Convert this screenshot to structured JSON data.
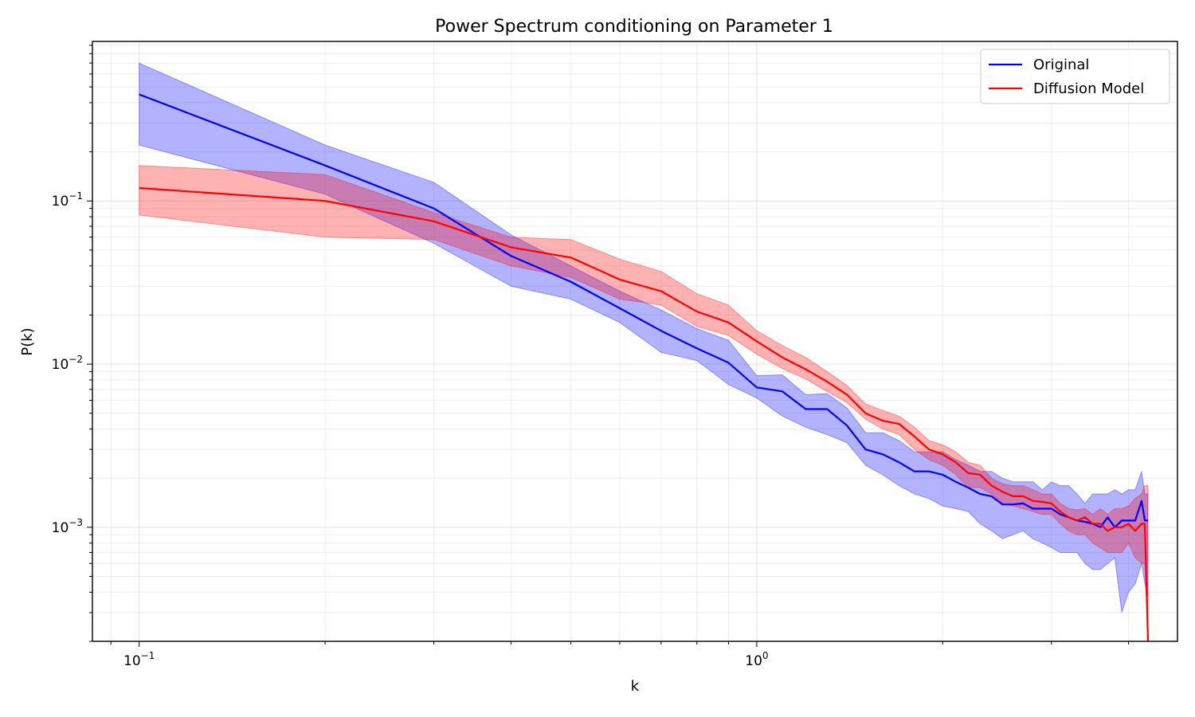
{
  "chart_data": {
    "type": "line",
    "title": "Power Spectrum conditioning on Parameter 1",
    "xlabel": "k",
    "ylabel": "P(k)",
    "xscale": "log",
    "yscale": "log",
    "xlim": [
      0.084,
      4.8
    ],
    "ylim": [
      0.0002,
      0.95
    ],
    "grid": true,
    "legend_position": "top-right",
    "x_ticks": [
      {
        "value": 0.1,
        "base": "10",
        "exp": "−1"
      },
      {
        "value": 1,
        "base": "10",
        "exp": "0"
      }
    ],
    "y_ticks": [
      {
        "value": 0.1,
        "base": "10",
        "exp": "−1"
      },
      {
        "value": 0.01,
        "base": "10",
        "exp": "−2"
      },
      {
        "value": 0.001,
        "base": "10",
        "exp": "−3"
      }
    ],
    "x": [
      0.1,
      0.2,
      0.3,
      0.4,
      0.5,
      0.6,
      0.7,
      0.8,
      0.9,
      1.0,
      1.1,
      1.2,
      1.3,
      1.4,
      1.5,
      1.6,
      1.7,
      1.8,
      1.9,
      2.0,
      2.1,
      2.2,
      2.3,
      2.4,
      2.5,
      2.6,
      2.7,
      2.8,
      2.9,
      3.0,
      3.1,
      3.2,
      3.3,
      3.4,
      3.5,
      3.6,
      3.7,
      3.8,
      3.9,
      4.0,
      4.1,
      4.2,
      4.25,
      4.3
    ],
    "series": [
      {
        "name": "Original",
        "color": "#0000ff",
        "band_color": "#0000ff",
        "values": [
          0.45,
          0.165,
          0.09,
          0.046,
          0.032,
          0.022,
          0.016,
          0.0125,
          0.0102,
          0.0072,
          0.0068,
          0.0053,
          0.0053,
          0.0042,
          0.003,
          0.0028,
          0.0025,
          0.0022,
          0.0022,
          0.0021,
          0.0019,
          0.00175,
          0.0016,
          0.00155,
          0.00138,
          0.00138,
          0.0014,
          0.0013,
          0.0013,
          0.0013,
          0.0012,
          0.00115,
          0.0011,
          0.00108,
          0.00105,
          0.001,
          0.00115,
          0.001,
          0.0011,
          0.0011,
          0.0011,
          0.00145,
          0.0011,
          0.0011
        ],
        "lower": [
          0.22,
          0.11,
          0.055,
          0.03,
          0.025,
          0.018,
          0.0118,
          0.0105,
          0.0075,
          0.0062,
          0.0048,
          0.0041,
          0.0037,
          0.0033,
          0.0024,
          0.0021,
          0.0018,
          0.0016,
          0.0015,
          0.00135,
          0.0013,
          0.00125,
          0.00105,
          0.00095,
          0.00085,
          0.0009,
          0.00095,
          0.00085,
          0.0008,
          0.00075,
          0.0007,
          0.0007,
          0.0007,
          0.0006,
          0.00055,
          0.00055,
          0.0006,
          0.00065,
          0.0003,
          0.0004,
          0.00045,
          0.0006,
          0.00045,
          0.00038
        ],
        "upper": [
          0.7,
          0.22,
          0.13,
          0.062,
          0.04,
          0.028,
          0.0215,
          0.0165,
          0.014,
          0.0085,
          0.0086,
          0.0065,
          0.0066,
          0.0054,
          0.0038,
          0.0038,
          0.0034,
          0.0029,
          0.0029,
          0.0029,
          0.0026,
          0.0024,
          0.0022,
          0.0022,
          0.002,
          0.0019,
          0.0019,
          0.0019,
          0.0017,
          0.0019,
          0.0018,
          0.0018,
          0.0016,
          0.0014,
          0.0016,
          0.0016,
          0.0016,
          0.0017,
          0.0016,
          0.0017,
          0.0017,
          0.0022,
          0.0016,
          0.0016
        ]
      },
      {
        "name": "Diffusion Model",
        "color": "#ff0000",
        "band_color": "#ff0000",
        "values": [
          0.12,
          0.1,
          0.075,
          0.052,
          0.045,
          0.033,
          0.028,
          0.021,
          0.018,
          0.0138,
          0.011,
          0.0093,
          0.0078,
          0.0065,
          0.005,
          0.0045,
          0.0043,
          0.0036,
          0.003,
          0.0028,
          0.0025,
          0.00215,
          0.0021,
          0.0018,
          0.00165,
          0.00155,
          0.00155,
          0.00145,
          0.00143,
          0.0014,
          0.00125,
          0.00115,
          0.0011,
          0.00115,
          0.00105,
          0.00105,
          0.00095,
          0.001,
          0.001,
          0.00105,
          0.00095,
          0.00105,
          0.00105,
          0.0002
        ],
        "lower": [
          0.082,
          0.06,
          0.058,
          0.04,
          0.034,
          0.025,
          0.023,
          0.017,
          0.015,
          0.0115,
          0.0094,
          0.0081,
          0.0068,
          0.0058,
          0.0046,
          0.004,
          0.0037,
          0.003,
          0.0026,
          0.0024,
          0.0021,
          0.00175,
          0.00175,
          0.0016,
          0.0014,
          0.00135,
          0.0013,
          0.00125,
          0.0012,
          0.0012,
          0.00105,
          0.00095,
          0.0009,
          0.0009,
          0.0008,
          0.00075,
          0.0007,
          0.0007,
          0.0007,
          0.0008,
          0.00065,
          0.0006,
          0.0006,
          0.0002
        ],
        "upper": [
          0.165,
          0.145,
          0.085,
          0.06,
          0.058,
          0.044,
          0.037,
          0.027,
          0.023,
          0.016,
          0.013,
          0.011,
          0.009,
          0.0074,
          0.0057,
          0.0052,
          0.0048,
          0.0041,
          0.0034,
          0.0032,
          0.0029,
          0.0025,
          0.0024,
          0.002,
          0.00185,
          0.0018,
          0.0018,
          0.0017,
          0.0016,
          0.0016,
          0.0014,
          0.0013,
          0.00128,
          0.0013,
          0.0012,
          0.0013,
          0.0012,
          0.0013,
          0.0013,
          0.00135,
          0.0015,
          0.0016,
          0.0018,
          0.0018
        ]
      }
    ]
  }
}
